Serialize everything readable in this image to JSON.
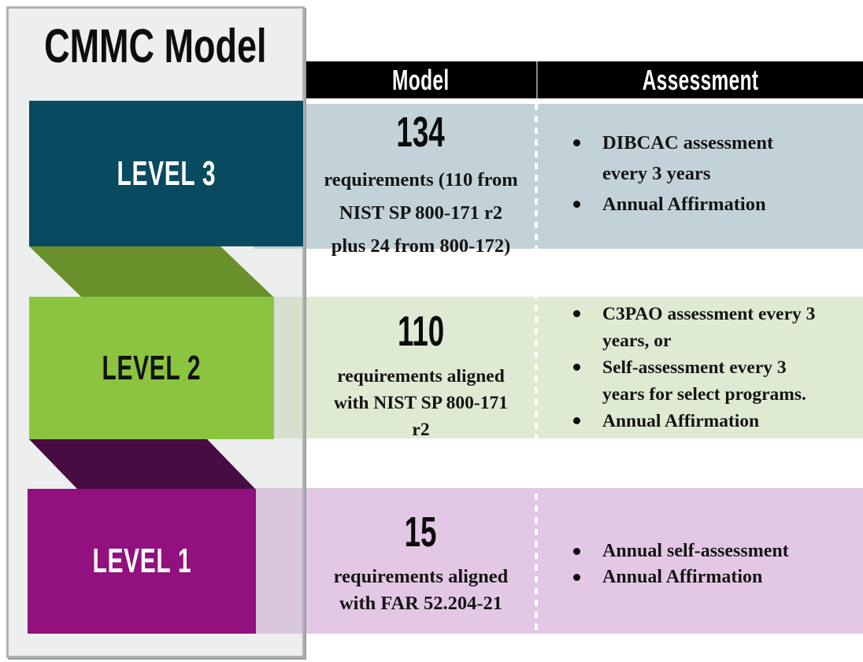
{
  "title": "CMMC Model",
  "table_headers": {
    "model": "Model",
    "assessment": "Assessment"
  },
  "levels": [
    {
      "name": "LEVEL 3",
      "banner_color": "#084a5f",
      "banner_text_color": "#ffffff",
      "row_color": "#c3d2d9",
      "model": {
        "number": "134",
        "description": "requirements (110 from\nNIST SP 800-171 r2\nplus 24 from 800-172)"
      },
      "assessment": [
        "DIBCAC assessment\nevery 3 years",
        "Annual Affirmation"
      ]
    },
    {
      "name": "LEVEL 2",
      "banner_color": "#8bc53f",
      "banner_text_color": "#121212",
      "row_color": "#dfead3",
      "model": {
        "number": "110",
        "description": "requirements aligned\nwith NIST SP 800-171\nr2"
      },
      "assessment": [
        "C3PAO assessment every 3\nyears, or",
        "Self-assessment every 3\nyears for select programs.",
        "Annual Affirmation"
      ]
    },
    {
      "name": "LEVEL 1",
      "banner_color": "#93107f",
      "banner_text_color": "#ffffff",
      "row_color": "#e3c8e5",
      "model": {
        "number": "15",
        "description": "requirements aligned\nwith FAR 52.204-21"
      },
      "assessment": [
        "Annual self-assessment",
        "Annual Affirmation"
      ]
    }
  ],
  "connectors": [
    {
      "from": "level-3",
      "to": "level-2",
      "color": "#68912c"
    },
    {
      "from": "level-2",
      "to": "level-1",
      "color": "#470c41"
    }
  ]
}
